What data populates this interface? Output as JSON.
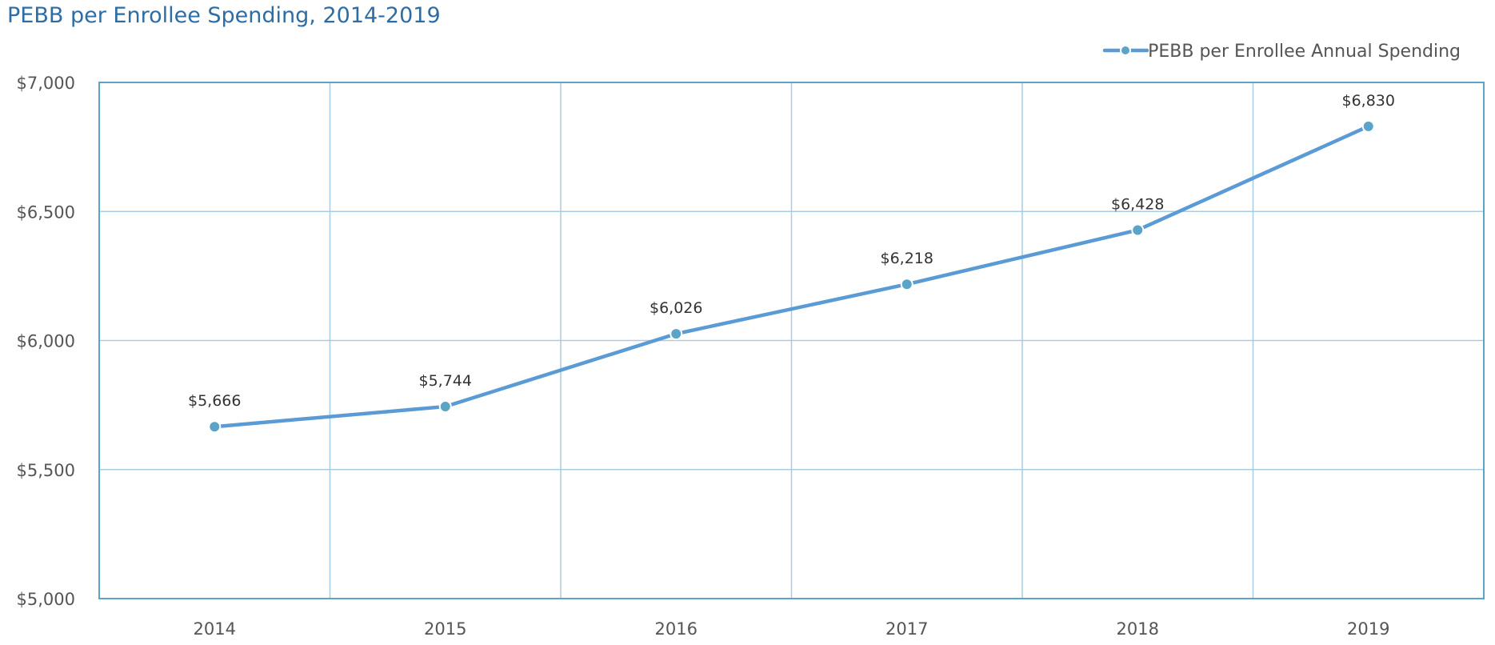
{
  "chart_data": {
    "type": "line",
    "title": "PEBB per Enrollee Spending, 2014-2019",
    "xlabel": "",
    "ylabel": "",
    "categories": [
      "2014",
      "2015",
      "2016",
      "2017",
      "2018",
      "2019"
    ],
    "series": [
      {
        "name": "PEBB per Enrollee Annual Spending",
        "values": [
          5666,
          5744,
          6026,
          6218,
          6428,
          6830
        ],
        "data_labels": [
          "$5,666",
          "$5,744",
          "$6,026",
          "$6,218",
          "$6,428",
          "$6,830"
        ]
      }
    ],
    "ylim": [
      5000,
      7000
    ],
    "yticks": [
      5000,
      5500,
      6000,
      6500,
      7000
    ],
    "ytick_labels": [
      "$5,000",
      "$5,500",
      "$6,000",
      "$6,500",
      "$7,000"
    ],
    "grid": true,
    "legend_position": "top-right",
    "colors": {
      "line": "#5b9bd5",
      "marker": "#5ba3c7",
      "grid": "#a9cce0",
      "frame": "#5ba3c7",
      "title": "#2e6ca4"
    }
  }
}
